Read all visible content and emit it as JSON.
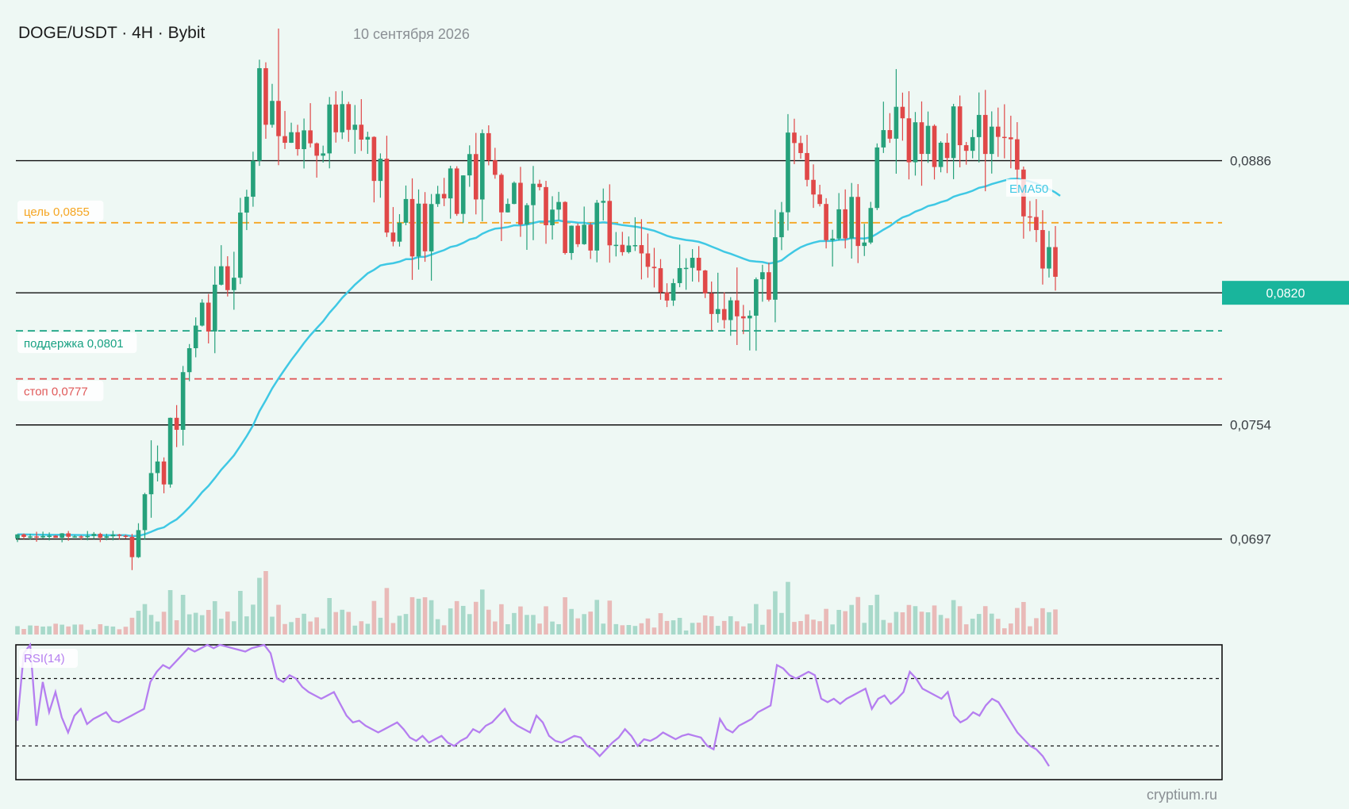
{
  "header": {
    "title": "DOGE/USDT · 4H · Bybit",
    "date": "10 сентября 2026"
  },
  "footer": {
    "watermark": "cryptium.ru"
  },
  "colors": {
    "up": "#26a17b",
    "down": "#e04848",
    "ema": "#3fc8e4",
    "rsi": "#b57ef0",
    "target": "#f5a623",
    "support": "#19a283",
    "stop": "#e05a5a",
    "level": "#111111",
    "current_tag_bg": "#19b59c"
  },
  "chart_data": [
    {
      "type": "candlestick",
      "title": "DOGE/USDT · 4H · Bybit",
      "y_axis_side": "right",
      "ylim": [
        0.0681,
        0.0952
      ],
      "candles_count": 164,
      "indicators": [
        {
          "name": "EMA50",
          "type": "line"
        }
      ],
      "levels": [
        {
          "value": 0.0886,
          "label": "0,0886",
          "style": "solid"
        },
        {
          "value": 0.082,
          "label": "0,0820",
          "style": "solid",
          "current": true
        },
        {
          "value": 0.0754,
          "label": "0,0754",
          "style": "solid"
        },
        {
          "value": 0.0697,
          "label": "0,0697",
          "style": "solid"
        }
      ],
      "zones": [
        {
          "label": "цель 0,0855",
          "value": 0.0855,
          "style": "dashed",
          "color": "#f5a623"
        },
        {
          "label": "поддержка 0,0801",
          "value": 0.0801,
          "style": "dashed",
          "color": "#19a283"
        },
        {
          "label": "стоп 0,0777",
          "value": 0.0777,
          "style": "dashed",
          "color": "#e05a5a"
        }
      ],
      "current_price": "0,0820",
      "ema_label": "EMA50",
      "price_path": [
        [
          0,
          0.0698
        ],
        [
          18,
          0.0699
        ],
        [
          19,
          0.0712
        ],
        [
          25,
          0.0745
        ],
        [
          28,
          0.0788
        ],
        [
          33,
          0.0825
        ],
        [
          36,
          0.0855
        ],
        [
          39,
          0.0925
        ],
        [
          41,
          0.0905
        ],
        [
          45,
          0.0895
        ],
        [
          50,
          0.0905
        ],
        [
          56,
          0.089
        ],
        [
          60,
          0.086
        ],
        [
          65,
          0.0848
        ],
        [
          70,
          0.0872
        ],
        [
          75,
          0.0885
        ],
        [
          80,
          0.0865
        ],
        [
          86,
          0.085
        ],
        [
          92,
          0.085
        ],
        [
          98,
          0.0848
        ],
        [
          99,
          0.0826
        ],
        [
          105,
          0.083
        ],
        [
          110,
          0.082
        ],
        [
          115,
          0.0815
        ],
        [
          120,
          0.0825
        ],
        [
          122,
          0.084
        ],
        [
          123,
          0.0888
        ],
        [
          128,
          0.088
        ],
        [
          129,
          0.085
        ],
        [
          135,
          0.0852
        ],
        [
          137,
          0.087
        ],
        [
          139,
          0.0895
        ],
        [
          142,
          0.0903
        ],
        [
          146,
          0.0892
        ],
        [
          150,
          0.09
        ],
        [
          155,
          0.0895
        ],
        [
          158,
          0.0895
        ],
        [
          160,
          0.087
        ],
        [
          163,
          0.0845
        ],
        [
          165,
          0.0828
        ],
        [
          166,
          0.082
        ]
      ],
      "volume_scale": "relative",
      "volume_max_index": 39,
      "volume_secondary_index": 139
    },
    {
      "type": "line",
      "title": "RSI(14)",
      "ylim": [
        10,
        90
      ],
      "guides": [
        70,
        30
      ],
      "values": [
        45,
        85,
        90,
        42,
        68,
        50,
        62,
        47,
        38,
        48,
        52,
        43,
        46,
        48,
        50,
        45,
        44,
        46,
        48,
        50,
        52,
        68,
        74,
        78,
        76,
        80,
        84,
        88,
        86,
        88,
        90,
        88,
        90,
        89,
        88,
        87,
        86,
        88,
        89,
        90,
        85,
        70,
        68,
        72,
        70,
        65,
        62,
        60,
        58,
        60,
        62,
        55,
        48,
        44,
        45,
        42,
        40,
        38,
        40,
        42,
        44,
        40,
        35,
        33,
        36,
        32,
        34,
        36,
        32,
        30,
        33,
        35,
        40,
        38,
        42,
        44,
        48,
        52,
        45,
        42,
        40,
        38,
        48,
        44,
        36,
        33,
        32,
        34,
        36,
        35,
        30,
        28,
        24,
        28,
        32,
        35,
        40,
        36,
        30,
        34,
        33,
        35,
        38,
        36,
        34,
        36,
        37,
        36,
        35,
        30,
        28,
        46,
        40,
        38,
        42,
        44,
        46,
        50,
        52,
        54,
        78,
        76,
        72,
        70,
        72,
        74,
        72,
        58,
        56,
        58,
        55,
        58,
        60,
        62,
        64,
        52,
        58,
        60,
        55,
        58,
        62,
        74,
        70,
        64,
        62,
        60,
        58,
        62,
        48,
        44,
        46,
        50,
        48,
        54,
        58,
        56,
        50,
        44,
        38,
        34,
        30,
        28,
        24,
        18
      ]
    }
  ]
}
